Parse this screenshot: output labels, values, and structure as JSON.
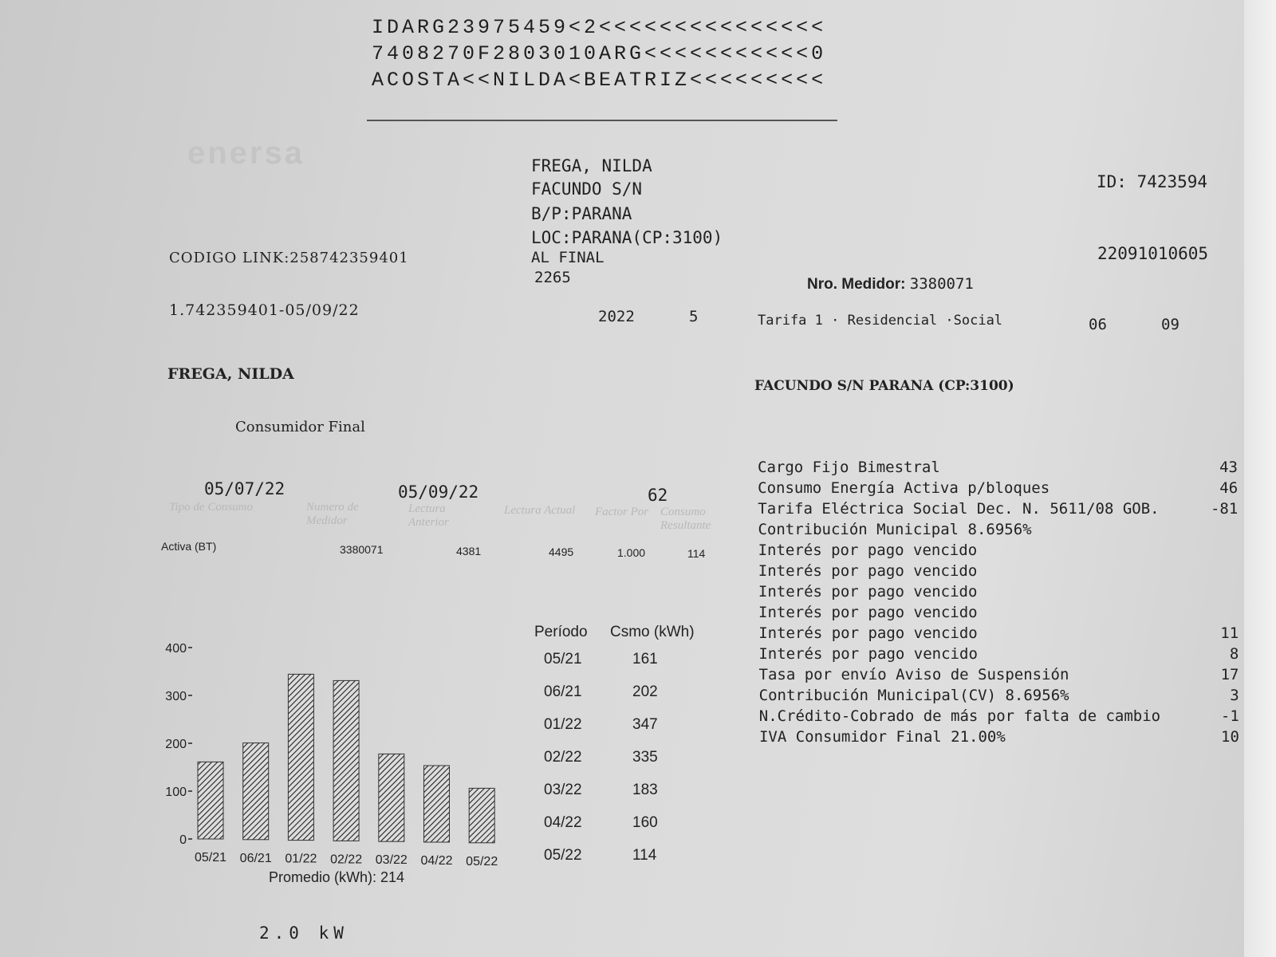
{
  "mrz": [
    "IDARG23975459<2<<<<<<<<<<<<<<<",
    "7408270F2803010ARG<<<<<<<<<<<0",
    "ACOSTA<<NILDA<BEATRIZ<<<<<<<<<"
  ],
  "logo": "enersa",
  "customer": {
    "name": "FREGA, NILDA",
    "street": "FACUNDO S/N",
    "bp": "B/P:PARANA",
    "loc": "LOC:PARANA(CP:3100)",
    "ref": "AL FINAL",
    "code": "2265"
  },
  "id_label": "ID: 7423594",
  "invoice_number": "22091010605",
  "codigo_link": "CODIGO LINK:258742359401",
  "ref_line": "1.742359401-05/09/22",
  "period": {
    "year": "2022",
    "num": "5"
  },
  "medidor": {
    "label": "Nro. Medidor:",
    "value": "3380071"
  },
  "tarifa": "Tarifa 1 · Residencial ·Social",
  "dates_right": [
    "06",
    "09"
  ],
  "holder_name": "FREGA, NILDA",
  "iva_condition": "Consumidor Final",
  "supply_address": "FACUNDO S/N PARANA (CP:3100)",
  "reading": {
    "date_prev": "05/07/22",
    "date_curr": "05/09/22",
    "days": "62",
    "headers": [
      "Tipo de Consumo",
      "Numero de Medidor",
      "Lectura Anterior",
      "Lectura Actual",
      "Factor Por",
      "Consumo Resultante"
    ],
    "row": [
      "Activa (BT)",
      "3380071",
      "4381",
      "4495",
      "1.000",
      "114"
    ]
  },
  "charges": [
    {
      "label": "Cargo Fijo Bimestral",
      "amount": "43"
    },
    {
      "label": "Consumo Energía Activa p/bloques",
      "amount": "46"
    },
    {
      "label": "Tarifa Eléctrica Social Dec. N. 5611/08 GOB.",
      "amount": "-81"
    },
    {
      "label": "Contribución Municipal 8.6956%",
      "amount": ""
    },
    {
      "label": "Interés por pago vencido",
      "amount": ""
    },
    {
      "label": "Interés por pago vencido",
      "amount": ""
    },
    {
      "label": "Interés por pago vencido",
      "amount": ""
    },
    {
      "label": "Interés por pago vencido",
      "amount": ""
    },
    {
      "label": "Interés por pago vencido",
      "amount": "11"
    },
    {
      "label": "Interés por pago vencido",
      "amount": "8"
    },
    {
      "label": "Tasa por envío Aviso de Suspensión",
      "amount": "17"
    },
    {
      "label": "Contribución Municipal(CV) 8.6956%",
      "amount": "3"
    },
    {
      "label": "N.Crédito-Cobrado de más por falta de cambio",
      "amount": "-1"
    },
    {
      "label": "IVA Consumidor Final 21.00%",
      "amount": "10"
    }
  ],
  "history": {
    "header_period": "Período",
    "header_csmo": "Csmo (kWh)",
    "rows": [
      [
        "05/21",
        "161"
      ],
      [
        "06/21",
        "202"
      ],
      [
        "01/22",
        "347"
      ],
      [
        "02/22",
        "335"
      ],
      [
        "03/22",
        "183"
      ],
      [
        "04/22",
        "160"
      ],
      [
        "05/22",
        "114"
      ]
    ]
  },
  "chart_data": {
    "type": "bar",
    "categories": [
      "05/21",
      "06/21",
      "01/22",
      "02/22",
      "03/22",
      "04/22",
      "05/22"
    ],
    "values": [
      161,
      202,
      347,
      335,
      183,
      160,
      114
    ],
    "yticks": [
      0,
      100,
      200,
      300,
      400
    ],
    "ylim": [
      0,
      400
    ],
    "pattern": "hatched",
    "footer": "Promedio (kWh): 214"
  },
  "potencia": "2.0 kW"
}
